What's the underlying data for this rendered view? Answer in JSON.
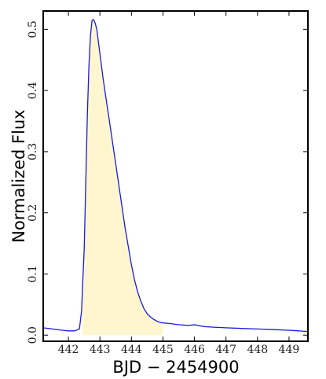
{
  "chart_data": {
    "type": "area",
    "xlabel": "BJD − 2454900",
    "ylabel": "Normalized Flux",
    "xlim": [
      441.2,
      449.6
    ],
    "ylim": [
      -0.01,
      0.53
    ],
    "xticks": [
      442,
      443,
      444,
      445,
      446,
      447,
      448,
      449
    ],
    "xtick_labels": [
      "442",
      "443",
      "444",
      "445",
      "446",
      "447",
      "448",
      "449"
    ],
    "yticks": [
      0.0,
      0.1,
      0.2,
      0.3,
      0.4,
      0.5
    ],
    "ytick_labels": [
      "0.0",
      "0.1",
      "0.2",
      "0.3",
      "0.4",
      "0.5"
    ],
    "grid": false,
    "fill_start": 442.45,
    "fill_end": 445.0,
    "colors": {
      "line": "#1a1adf",
      "fill": "#fdf6cf",
      "axis": "#000000"
    },
    "series": [
      {
        "x": [
          441.2,
          441.5,
          441.8,
          442.0,
          442.2,
          442.35,
          442.42,
          442.45,
          442.5,
          442.55,
          442.6,
          442.65,
          442.7,
          442.75,
          442.8,
          442.85,
          442.9,
          442.95,
          443.0,
          443.05,
          443.1,
          443.2,
          443.3,
          443.4,
          443.5,
          443.6,
          443.7,
          443.8,
          443.9,
          444.0,
          444.1,
          444.2,
          444.3,
          444.4,
          444.5,
          444.6,
          444.7,
          444.8,
          444.9,
          445.0,
          445.2,
          445.5,
          445.8,
          446.0,
          446.3,
          446.6,
          447.0,
          447.5,
          448.0,
          448.5,
          449.0,
          449.3,
          449.6
        ],
        "y": [
          0.012,
          0.01,
          0.008,
          0.007,
          0.007,
          0.01,
          0.04,
          0.08,
          0.14,
          0.25,
          0.36,
          0.44,
          0.49,
          0.515,
          0.516,
          0.51,
          0.5,
          0.48,
          0.46,
          0.44,
          0.42,
          0.385,
          0.35,
          0.315,
          0.28,
          0.245,
          0.21,
          0.175,
          0.145,
          0.115,
          0.09,
          0.07,
          0.055,
          0.043,
          0.035,
          0.03,
          0.026,
          0.023,
          0.021,
          0.02,
          0.019,
          0.017,
          0.016,
          0.017,
          0.014,
          0.013,
          0.012,
          0.011,
          0.01,
          0.009,
          0.008,
          0.007,
          0.006
        ]
      }
    ]
  }
}
